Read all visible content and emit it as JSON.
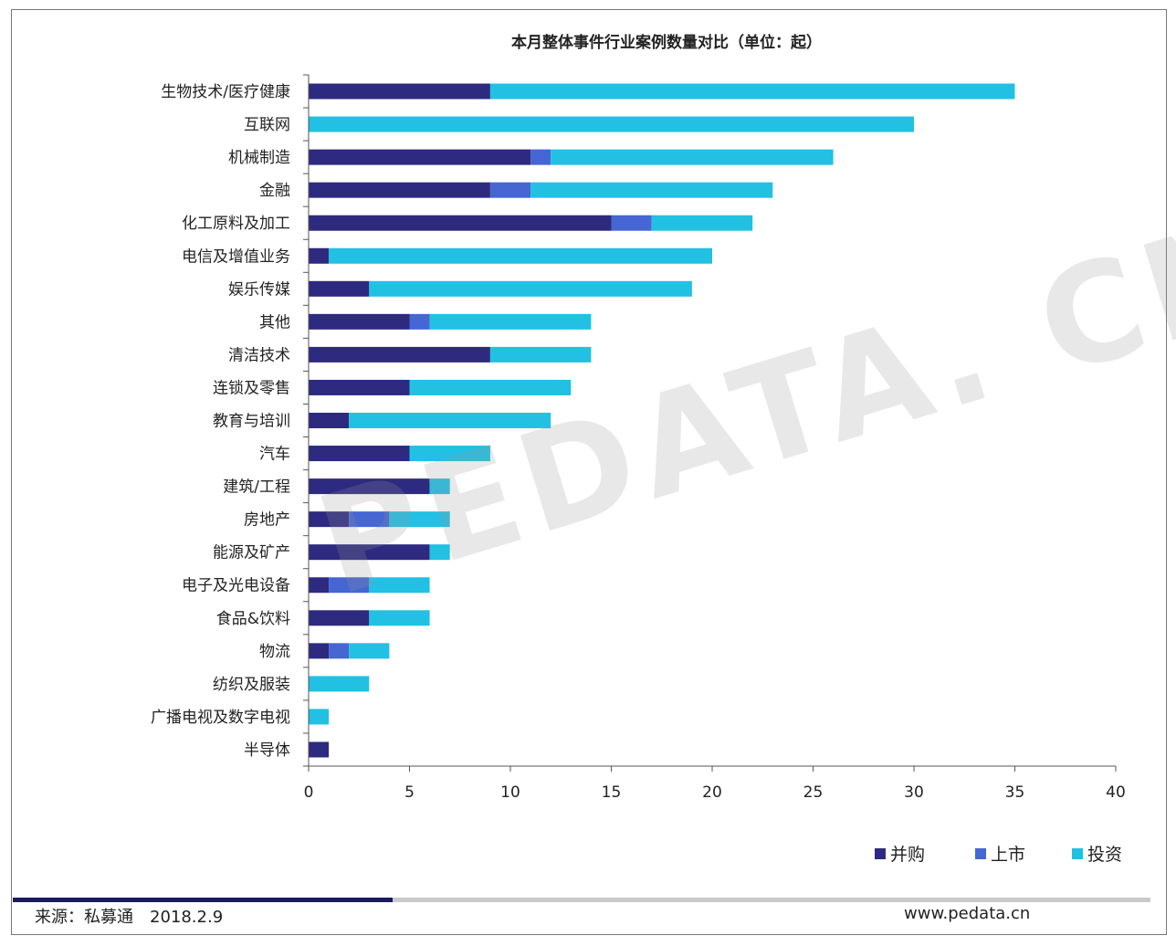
{
  "chart_data": {
    "type": "bar",
    "orientation": "horizontal",
    "stacked": true,
    "title": "本月整体事件行业案例数量对比（单位：起）",
    "categories": [
      "生物技术/医疗健康",
      "互联网",
      "机械制造",
      "金融",
      "化工原料及加工",
      "电信及增值业务",
      "娱乐传媒",
      "其他",
      "清洁技术",
      "连锁及零售",
      "教育与培训",
      "汽车",
      "建筑/工程",
      "房地产",
      "能源及矿产",
      "电子及光电设备",
      "食品&饮料",
      "物流",
      "纺织及服装",
      "广播电视及数字电视",
      "半导体"
    ],
    "series": [
      {
        "name": "并购",
        "color": "#2e2a7f",
        "values": [
          9,
          0,
          11,
          9,
          15,
          1,
          3,
          5,
          9,
          5,
          2,
          5,
          6,
          2,
          6,
          1,
          3,
          1,
          0,
          0,
          1
        ]
      },
      {
        "name": "上市",
        "color": "#4566d3",
        "values": [
          0,
          0,
          1,
          2,
          2,
          0,
          0,
          1,
          0,
          0,
          0,
          0,
          0,
          2,
          0,
          2,
          0,
          1,
          0,
          0,
          0
        ]
      },
      {
        "name": "投资",
        "color": "#22c0e3",
        "values": [
          26,
          30,
          14,
          12,
          5,
          19,
          16,
          8,
          5,
          8,
          10,
          4,
          1,
          3,
          1,
          3,
          3,
          2,
          3,
          1,
          0
        ]
      }
    ],
    "xlim": [
      0,
      40
    ],
    "xticks": [
      "0",
      "5",
      "10",
      "15",
      "20",
      "25",
      "30",
      "35",
      "40"
    ],
    "legend_position": "bottom-right",
    "grid": false
  },
  "watermark": "PEDATA. CN",
  "footer": {
    "source": "来源：私募通　2018.2.9",
    "site": "www.pedata.cn"
  }
}
